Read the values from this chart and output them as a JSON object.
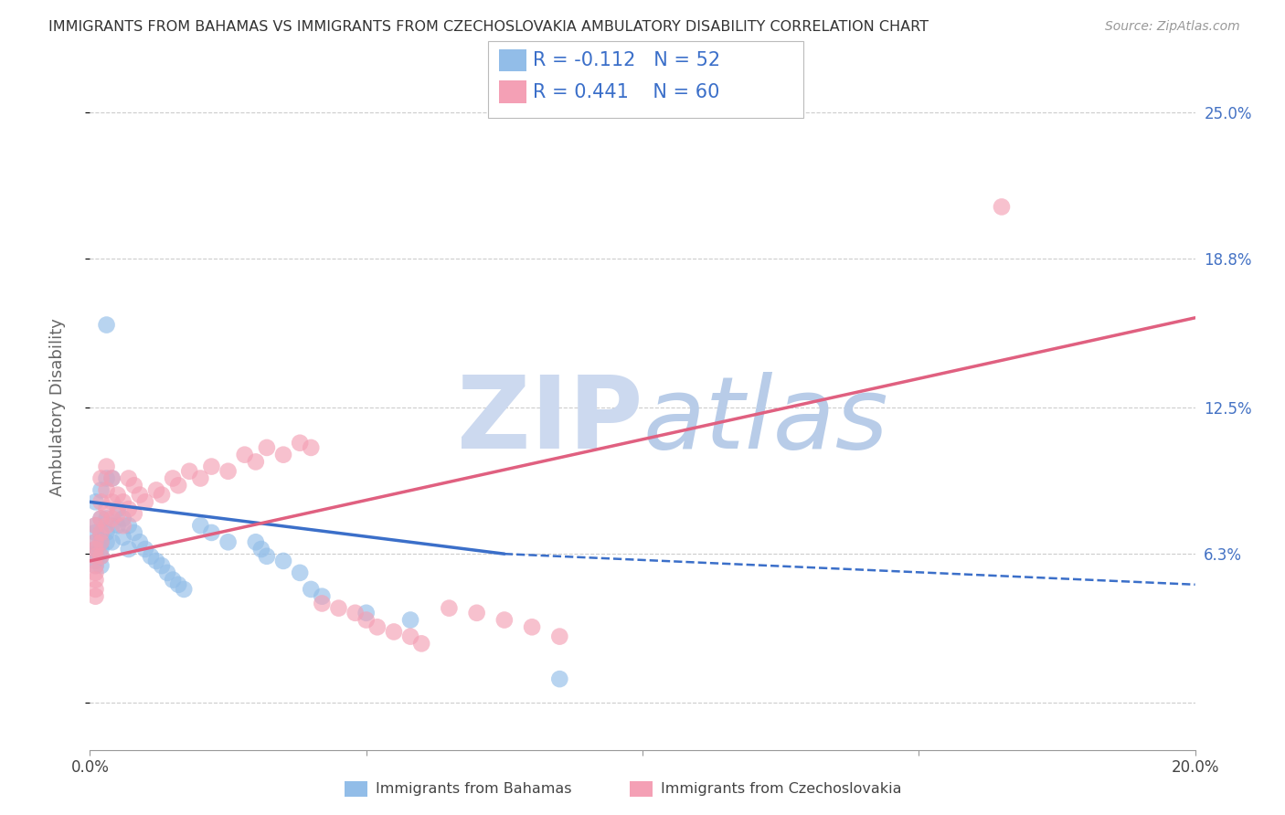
{
  "title": "IMMIGRANTS FROM BAHAMAS VS IMMIGRANTS FROM CZECHOSLOVAKIA AMBULATORY DISABILITY CORRELATION CHART",
  "source": "Source: ZipAtlas.com",
  "ylabel": "Ambulatory Disability",
  "yticks": [
    0.0,
    0.063,
    0.125,
    0.188,
    0.25
  ],
  "ytick_labels": [
    "",
    "6.3%",
    "12.5%",
    "18.8%",
    "25.0%"
  ],
  "xlim": [
    0.0,
    0.2
  ],
  "ylim": [
    -0.02,
    0.27
  ],
  "R_bahamas": -0.112,
  "N_bahamas": 52,
  "R_czech": 0.441,
  "N_czech": 60,
  "color_bahamas": "#92bde8",
  "color_czech": "#f4a0b5",
  "color_bahamas_line": "#3b6fc9",
  "color_czech_line": "#e06080",
  "watermark_zip": "ZIP",
  "watermark_atlas": "atlas",
  "watermark_color": "#ccd9ef",
  "watermark_atlas_color": "#b8cce8",
  "background_color": "#ffffff",
  "grid_color": "#cccccc",
  "x_bahamas": [
    0.001,
    0.001,
    0.001,
    0.001,
    0.001,
    0.001,
    0.001,
    0.001,
    0.002,
    0.002,
    0.002,
    0.002,
    0.002,
    0.002,
    0.002,
    0.003,
    0.003,
    0.003,
    0.003,
    0.003,
    0.004,
    0.004,
    0.004,
    0.005,
    0.005,
    0.006,
    0.006,
    0.007,
    0.007,
    0.008,
    0.009,
    0.01,
    0.011,
    0.012,
    0.013,
    0.014,
    0.015,
    0.016,
    0.017,
    0.02,
    0.022,
    0.025,
    0.03,
    0.031,
    0.032,
    0.035,
    0.038,
    0.04,
    0.042,
    0.05,
    0.058,
    0.085
  ],
  "y_bahamas": [
    0.085,
    0.075,
    0.072,
    0.068,
    0.065,
    0.063,
    0.06,
    0.058,
    0.09,
    0.078,
    0.072,
    0.068,
    0.065,
    0.062,
    0.058,
    0.16,
    0.095,
    0.078,
    0.072,
    0.068,
    0.095,
    0.075,
    0.068,
    0.082,
    0.075,
    0.078,
    0.07,
    0.075,
    0.065,
    0.072,
    0.068,
    0.065,
    0.062,
    0.06,
    0.058,
    0.055,
    0.052,
    0.05,
    0.048,
    0.075,
    0.072,
    0.068,
    0.068,
    0.065,
    0.062,
    0.06,
    0.055,
    0.048,
    0.045,
    0.038,
    0.035,
    0.01
  ],
  "x_czech": [
    0.001,
    0.001,
    0.001,
    0.001,
    0.001,
    0.001,
    0.001,
    0.001,
    0.001,
    0.002,
    0.002,
    0.002,
    0.002,
    0.002,
    0.002,
    0.003,
    0.003,
    0.003,
    0.003,
    0.004,
    0.004,
    0.004,
    0.005,
    0.005,
    0.006,
    0.006,
    0.007,
    0.007,
    0.008,
    0.008,
    0.009,
    0.01,
    0.012,
    0.013,
    0.015,
    0.016,
    0.018,
    0.02,
    0.022,
    0.025,
    0.028,
    0.03,
    0.032,
    0.035,
    0.038,
    0.04,
    0.042,
    0.045,
    0.048,
    0.05,
    0.052,
    0.055,
    0.058,
    0.06,
    0.065,
    0.07,
    0.075,
    0.08,
    0.085,
    0.165
  ],
  "y_czech": [
    0.075,
    0.068,
    0.065,
    0.062,
    0.058,
    0.055,
    0.052,
    0.048,
    0.045,
    0.095,
    0.085,
    0.078,
    0.072,
    0.068,
    0.062,
    0.1,
    0.09,
    0.082,
    0.075,
    0.095,
    0.085,
    0.078,
    0.088,
    0.08,
    0.085,
    0.075,
    0.095,
    0.082,
    0.092,
    0.08,
    0.088,
    0.085,
    0.09,
    0.088,
    0.095,
    0.092,
    0.098,
    0.095,
    0.1,
    0.098,
    0.105,
    0.102,
    0.108,
    0.105,
    0.11,
    0.108,
    0.042,
    0.04,
    0.038,
    0.035,
    0.032,
    0.03,
    0.028,
    0.025,
    0.04,
    0.038,
    0.035,
    0.032,
    0.028,
    0.21
  ],
  "trend_bahamas_x0": 0.0,
  "trend_bahamas_y0": 0.085,
  "trend_bahamas_x1": 0.075,
  "trend_bahamas_y1": 0.063,
  "trend_bahamas_solid_end": 0.075,
  "trend_bahamas_x2": 0.2,
  "trend_bahamas_y2": 0.05,
  "trend_czech_x0": 0.0,
  "trend_czech_y0": 0.06,
  "trend_czech_x1": 0.2,
  "trend_czech_y1": 0.163,
  "legend_R_bah": "R = -0.112",
  "legend_N_bah": "N = 52",
  "legend_R_cz": "R = 0.441",
  "legend_N_cz": "N = 60"
}
